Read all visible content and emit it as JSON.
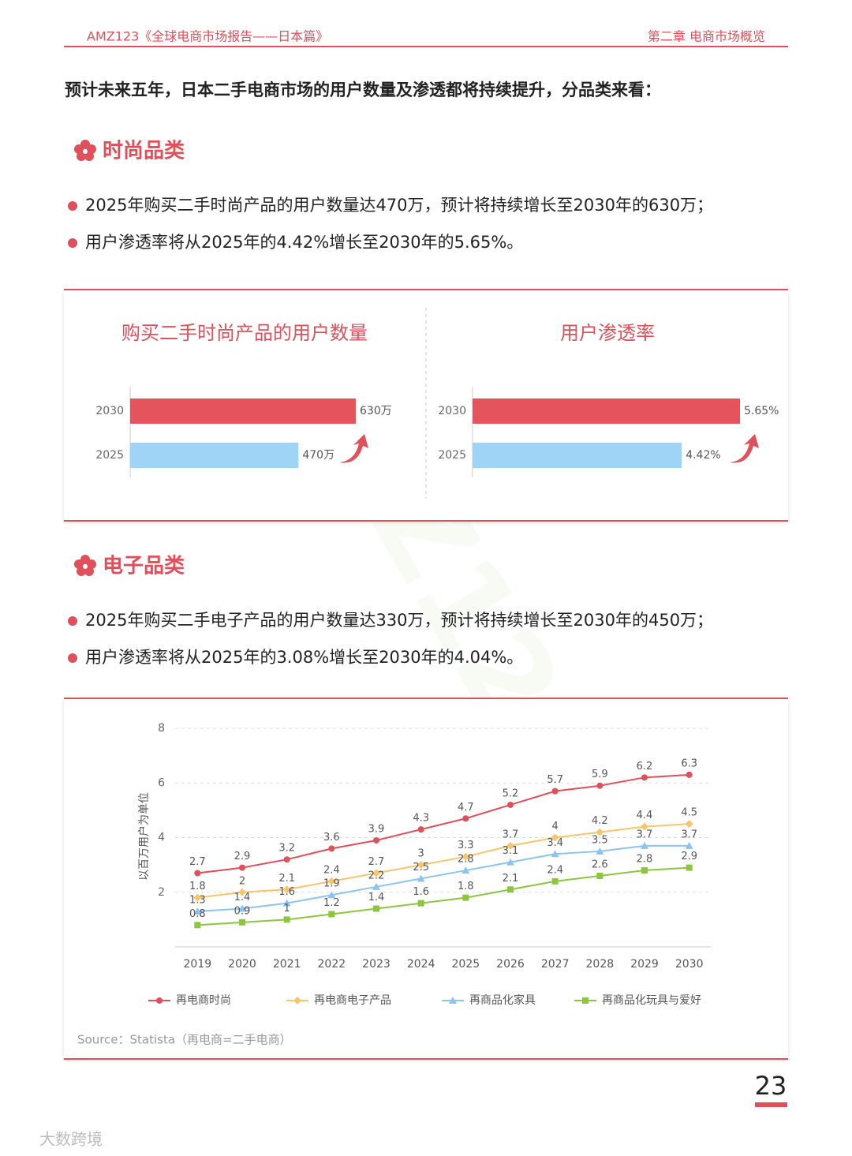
{
  "header": {
    "left": "AMZ123《全球电商市场报告——日本篇》",
    "right": "第二章  电商市场概览"
  },
  "intro": "预计未来五年，日本二手电商市场的用户数量及渗透都将持续提升，分品类来看：",
  "sections": [
    {
      "title": "时尚品类",
      "bullets": [
        "2025年购买二手时尚产品的用户数量达470万，预计将持续增长至2030年的630万；",
        "用户渗透率将从2025年的4.42%增长至2030年的5.65%。"
      ]
    },
    {
      "title": "电子品类",
      "bullets": [
        "2025年购买二手电子产品的用户数量达330万，预计将持续增长至2030年的450万；",
        "用户渗透率将从2025年的3.08%增长至2030年的4.04%。"
      ]
    }
  ],
  "chart_data": [
    {
      "type": "hbar",
      "title": "购买二手时尚产品的用户数量",
      "categories": [
        "2030",
        "2025"
      ],
      "values": [
        630,
        470
      ],
      "value_labels": [
        "630万",
        "470万"
      ],
      "colors": [
        "#e5535c",
        "#9fd4f7"
      ]
    },
    {
      "type": "hbar",
      "title": "用户渗透率",
      "categories": [
        "2030",
        "2025"
      ],
      "values": [
        5.65,
        4.42
      ],
      "value_labels": [
        "5.65%",
        "4.42%"
      ],
      "colors": [
        "#e5535c",
        "#9fd4f7"
      ]
    },
    {
      "type": "line",
      "ylabel": "以百万用户为单位",
      "source": "Source：Statista（再电商=二手电商）",
      "categories": [
        "2019",
        "2020",
        "2021",
        "2022",
        "2023",
        "2024",
        "2025",
        "2026",
        "2027",
        "2028",
        "2029",
        "2030"
      ],
      "ylim": [
        0,
        8
      ],
      "yticks": [
        2,
        4,
        6,
        8
      ],
      "grid": true,
      "series": [
        {
          "name": "再电商时尚",
          "color": "#e0505a",
          "marker": "circle",
          "values": [
            2.7,
            2.9,
            3.2,
            3.6,
            3.9,
            4.3,
            4.7,
            5.2,
            5.7,
            5.9,
            6.2,
            6.3
          ]
        },
        {
          "name": "再电商电子产品",
          "color": "#f5c66a",
          "marker": "diamond",
          "values": [
            1.8,
            2,
            2.1,
            2.4,
            2.7,
            3,
            3.3,
            3.7,
            4,
            4.2,
            4.4,
            4.5
          ]
        },
        {
          "name": "再商品化家具",
          "color": "#8cc4ef",
          "marker": "triangle",
          "values": [
            1.3,
            1.4,
            1.6,
            1.9,
            2.2,
            2.5,
            2.8,
            3.1,
            3.4,
            3.5,
            3.7,
            3.7
          ]
        },
        {
          "name": "再商品化玩具与爱好",
          "color": "#8cc63f",
          "marker": "square",
          "values": [
            0.8,
            0.9,
            1,
            1.2,
            1.4,
            1.6,
            1.8,
            2.1,
            2.4,
            2.6,
            2.8,
            2.9
          ]
        }
      ]
    }
  ],
  "page_number": "23",
  "footer_brand": "大数跨境",
  "watermark": "AMZ123"
}
